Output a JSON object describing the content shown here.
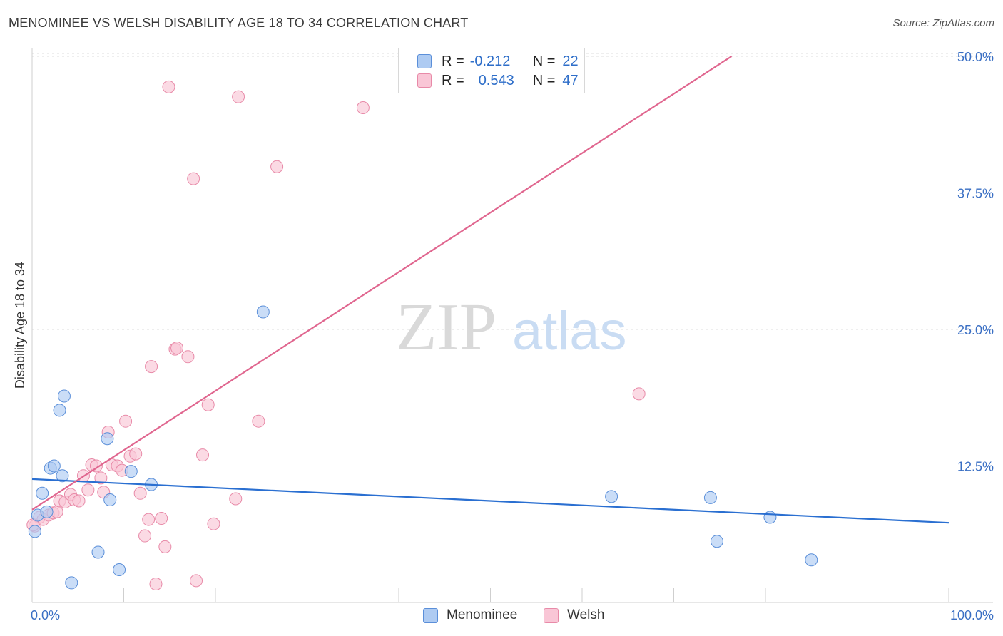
{
  "title": "MENOMINEE VS WELSH DISABILITY AGE 18 TO 34 CORRELATION CHART",
  "source": "Source: ZipAtlas.com",
  "watermark": {
    "zip": "ZIP",
    "atlas": "atlas"
  },
  "legend_top": {
    "rows": [
      {
        "r_label": "R =",
        "r_value": "-0.212",
        "n_label": "N =",
        "n_value": "22"
      },
      {
        "r_label": "R =",
        "r_value": "0.543",
        "n_label": "N =",
        "n_value": "47"
      }
    ]
  },
  "colors": {
    "menominee_fill": "#aecbf2",
    "menominee_stroke": "#5b8fd9",
    "menominee_line": "#2a6fd1",
    "welsh_fill": "#f9c6d6",
    "welsh_stroke": "#e88aa8",
    "welsh_line": "#e0668f",
    "tick_label": "#3a6fc4",
    "grid": "#dcdcdc"
  },
  "chart_data": {
    "type": "scatter",
    "title": "MENOMINEE VS WELSH DISABILITY AGE 18 TO 34 CORRELATION CHART",
    "xlabel": "",
    "ylabel": "Disability Age 18 to 34",
    "xlim": [
      0,
      100
    ],
    "ylim": [
      0,
      50
    ],
    "y_ticks": [
      12.5,
      25.0,
      37.5,
      50.0
    ],
    "y_tick_labels": [
      "12.5%",
      "25.0%",
      "37.5%",
      "50.0%"
    ],
    "x_tick_labels": [
      "0.0%",
      "100.0%"
    ],
    "legend_placement": "bottom-center",
    "series": [
      {
        "name": "Menominee",
        "r": -0.212,
        "n": 22,
        "trend": {
          "x": [
            0,
            100
          ],
          "y": [
            11.3,
            7.3
          ]
        },
        "points": [
          {
            "x": 0.3,
            "y": 6.5
          },
          {
            "x": 0.6,
            "y": 8.0
          },
          {
            "x": 1.1,
            "y": 10.0
          },
          {
            "x": 1.6,
            "y": 8.3
          },
          {
            "x": 2.0,
            "y": 12.3
          },
          {
            "x": 2.4,
            "y": 12.5
          },
          {
            "x": 3.0,
            "y": 17.6
          },
          {
            "x": 3.3,
            "y": 11.6
          },
          {
            "x": 3.5,
            "y": 18.9
          },
          {
            "x": 4.3,
            "y": 1.8
          },
          {
            "x": 7.2,
            "y": 4.6
          },
          {
            "x": 8.2,
            "y": 15.0
          },
          {
            "x": 8.5,
            "y": 9.4
          },
          {
            "x": 9.5,
            "y": 3.0
          },
          {
            "x": 10.8,
            "y": 12.0
          },
          {
            "x": 13.0,
            "y": 10.8
          },
          {
            "x": 25.2,
            "y": 26.6
          },
          {
            "x": 63.2,
            "y": 9.7
          },
          {
            "x": 74.0,
            "y": 9.6
          },
          {
            "x": 74.7,
            "y": 5.6
          },
          {
            "x": 80.5,
            "y": 7.8
          },
          {
            "x": 85.0,
            "y": 3.9
          }
        ]
      },
      {
        "name": "Welsh",
        "r": 0.543,
        "n": 47,
        "trend": {
          "x": [
            0,
            76.3
          ],
          "y": [
            8.5,
            50.0
          ]
        },
        "points": [
          {
            "x": 0.3,
            "y": 7.0
          },
          {
            "x": 0.8,
            "y": 7.8
          },
          {
            "x": 1.2,
            "y": 7.6
          },
          {
            "x": 1.8,
            "y": 8.0
          },
          {
            "x": 2.3,
            "y": 8.2
          },
          {
            "x": 2.7,
            "y": 8.3
          },
          {
            "x": 3.0,
            "y": 9.3
          },
          {
            "x": 3.6,
            "y": 9.2
          },
          {
            "x": 4.2,
            "y": 9.9
          },
          {
            "x": 4.6,
            "y": 9.4
          },
          {
            "x": 5.1,
            "y": 9.3
          },
          {
            "x": 5.6,
            "y": 11.6
          },
          {
            "x": 6.1,
            "y": 10.3
          },
          {
            "x": 6.5,
            "y": 12.6
          },
          {
            "x": 7.0,
            "y": 12.5
          },
          {
            "x": 7.5,
            "y": 11.4
          },
          {
            "x": 7.8,
            "y": 10.1
          },
          {
            "x": 8.3,
            "y": 15.6
          },
          {
            "x": 8.7,
            "y": 12.6
          },
          {
            "x": 9.3,
            "y": 12.5
          },
          {
            "x": 9.8,
            "y": 12.1
          },
          {
            "x": 10.2,
            "y": 16.6
          },
          {
            "x": 10.7,
            "y": 13.4
          },
          {
            "x": 11.3,
            "y": 13.6
          },
          {
            "x": 11.8,
            "y": 10.0
          },
          {
            "x": 12.3,
            "y": 6.1
          },
          {
            "x": 12.7,
            "y": 7.6
          },
          {
            "x": 13.0,
            "y": 21.6
          },
          {
            "x": 13.5,
            "y": 1.7
          },
          {
            "x": 14.1,
            "y": 7.7
          },
          {
            "x": 14.5,
            "y": 5.1
          },
          {
            "x": 14.9,
            "y": 47.2
          },
          {
            "x": 15.6,
            "y": 23.2
          },
          {
            "x": 15.8,
            "y": 23.3
          },
          {
            "x": 17.0,
            "y": 22.5
          },
          {
            "x": 17.6,
            "y": 38.8
          },
          {
            "x": 17.9,
            "y": 2.0
          },
          {
            "x": 18.6,
            "y": 13.5
          },
          {
            "x": 19.2,
            "y": 18.1
          },
          {
            "x": 19.8,
            "y": 7.2
          },
          {
            "x": 22.2,
            "y": 9.5
          },
          {
            "x": 22.5,
            "y": 46.3
          },
          {
            "x": 24.7,
            "y": 16.6
          },
          {
            "x": 26.7,
            "y": 39.9
          },
          {
            "x": 36.1,
            "y": 45.3
          },
          {
            "x": 66.2,
            "y": 19.1
          },
          {
            "x": 0.1,
            "y": 7.1
          }
        ]
      }
    ]
  }
}
